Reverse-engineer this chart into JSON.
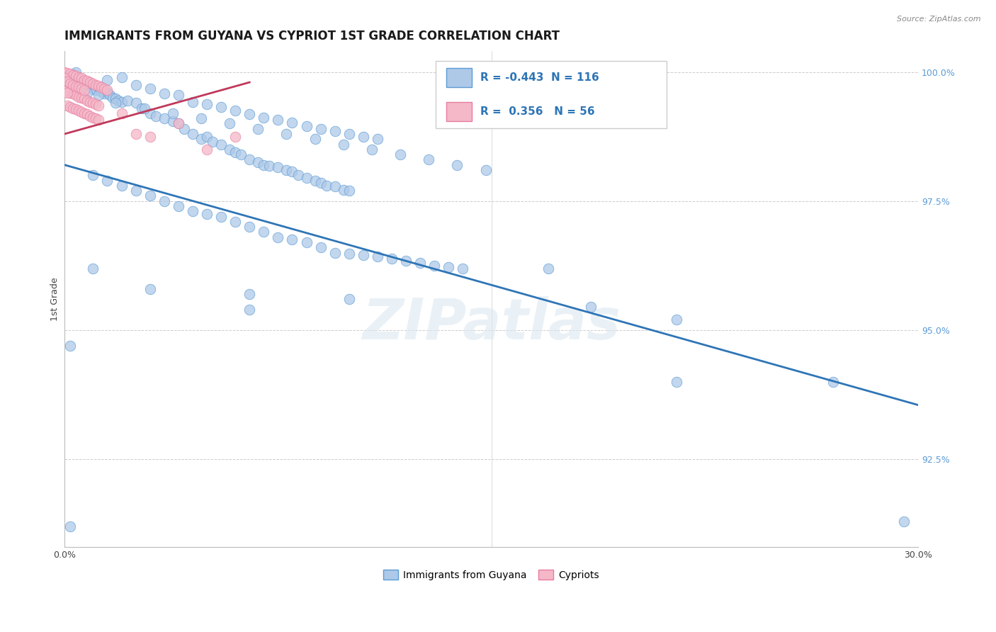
{
  "title": "IMMIGRANTS FROM GUYANA VS CYPRIOT 1ST GRADE CORRELATION CHART",
  "source_text": "Source: ZipAtlas.com",
  "ylabel": "1st Grade",
  "xlim": [
    0.0,
    0.3
  ],
  "ylim": [
    0.908,
    1.004
  ],
  "xticks": [
    0.0,
    0.025,
    0.05,
    0.075,
    0.1,
    0.125,
    0.15,
    0.175,
    0.2,
    0.225,
    0.25,
    0.275,
    0.3
  ],
  "xticklabels": [
    "0.0%",
    "",
    "",
    "",
    "",
    "",
    "",
    "",
    "",
    "",
    "",
    "",
    "30.0%"
  ],
  "yticks": [
    0.925,
    0.95,
    0.975,
    1.0
  ],
  "yticklabels": [
    "92.5%",
    "95.0%",
    "97.5%",
    "100.0%"
  ],
  "blue_fill": "#aec9e8",
  "blue_edge": "#5b9bd5",
  "pink_fill": "#f4b8c8",
  "pink_edge": "#e87ba0",
  "blue_line_color": "#2e75b6",
  "pink_line_color": "#c0395a",
  "legend_R_blue": "-0.443",
  "legend_N_blue": "116",
  "legend_R_pink": "0.356",
  "legend_N_pink": "56",
  "legend_label_blue": "Immigrants from Guyana",
  "legend_label_pink": "Cypriots",
  "watermark": "ZIPatlas",
  "title_fontsize": 12,
  "tick_color": "#5b9bd5",
  "blue_trend_x0": 0.0,
  "blue_trend_y0": 0.982,
  "blue_trend_x1": 0.3,
  "blue_trend_y1": 0.9355,
  "pink_trend_x0": 0.0,
  "pink_trend_y0": 0.988,
  "pink_trend_x1": 0.065,
  "pink_trend_y1": 0.998
}
